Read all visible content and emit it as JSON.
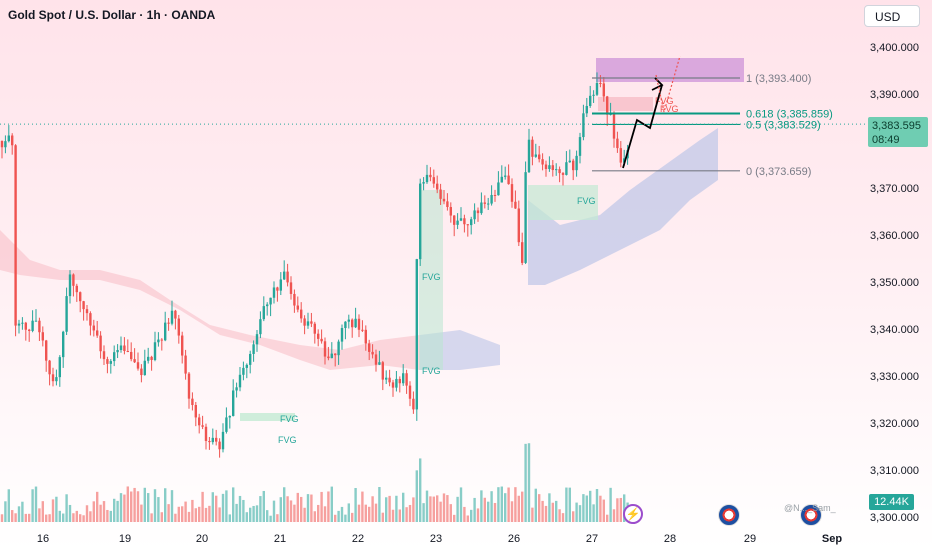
{
  "header": {
    "title": "Gold Spot / U.S. Dollar · 1h · OANDA",
    "currency_button": "USD"
  },
  "price_axis": {
    "ticks": [
      "3,400.000",
      "3,390.000",
      "3,380.000",
      "3,370.000",
      "3,360.000",
      "3,350.000",
      "3,340.000",
      "3,330.000",
      "3,320.000",
      "3,310.000",
      "3,300.000"
    ],
    "current_price": "3,383.595",
    "countdown": "08:49",
    "volume_label": "12.44K"
  },
  "time_axis": {
    "ticks": [
      "16",
      "19",
      "20",
      "21",
      "22",
      "23",
      "26",
      "27",
      "28",
      "29",
      "Sep"
    ]
  },
  "fib_labels": [
    "1 (3,393.400)",
    "0.618 (3,385.859)",
    "0.5 (3,383.529)",
    "0 (3,373.659)"
  ],
  "fvg_labels": [
    "FVG",
    "FVG",
    "FVG",
    "FVG",
    "FVG",
    "FVG",
    "FVG"
  ],
  "watermark": "@N..._Sam_",
  "colors": {
    "up": "#26a69a",
    "down": "#ef5350",
    "fib_green": "#089981",
    "fib_gray": "#787b86",
    "zone": "#ce93d8"
  },
  "chart_data": {
    "type": "candlestick",
    "symbol": "Gold Spot / U.S. Dollar",
    "timeframe": "1h",
    "ylim": [
      3300,
      3405
    ],
    "x_ticks": [
      "16",
      "19",
      "20",
      "21",
      "22",
      "23",
      "26",
      "27",
      "28",
      "29",
      "Sep"
    ],
    "price_path": [
      [
        15,
        3342
      ],
      [
        40,
        3340
      ],
      [
        55,
        3327
      ],
      [
        70,
        3352
      ],
      [
        85,
        3345
      ],
      [
        105,
        3333
      ],
      [
        120,
        3336
      ],
      [
        140,
        3330
      ],
      [
        160,
        3338
      ],
      [
        175,
        3344
      ],
      [
        190,
        3325
      ],
      [
        205,
        3317
      ],
      [
        220,
        3315
      ],
      [
        235,
        3327
      ],
      [
        255,
        3338
      ],
      [
        270,
        3348
      ],
      [
        285,
        3351
      ],
      [
        300,
        3342
      ],
      [
        315,
        3340
      ],
      [
        330,
        3332
      ],
      [
        345,
        3343
      ],
      [
        360,
        3340
      ],
      [
        375,
        3333
      ],
      [
        390,
        3328
      ],
      [
        405,
        3330
      ],
      [
        414,
        3322
      ],
      [
        418,
        3371
      ],
      [
        430,
        3372
      ],
      [
        445,
        3366
      ],
      [
        460,
        3362
      ],
      [
        475,
        3365
      ],
      [
        490,
        3367
      ],
      [
        505,
        3372
      ],
      [
        515,
        3365
      ],
      [
        522,
        3352
      ],
      [
        527,
        3380
      ],
      [
        535,
        3376
      ],
      [
        550,
        3374
      ],
      [
        565,
        3374
      ],
      [
        575,
        3375
      ],
      [
        583,
        3385
      ],
      [
        593,
        3390
      ],
      [
        600,
        3392
      ],
      [
        610,
        3385
      ],
      [
        622,
        3374
      ],
      [
        630,
        3380
      ]
    ],
    "fib_levels": [
      {
        "level": "1",
        "price": 3393.4
      },
      {
        "level": "0.618",
        "price": 3385.859
      },
      {
        "level": "0.5",
        "price": 3383.529
      },
      {
        "level": "0",
        "price": 3373.659
      }
    ],
    "current_price": 3383.595,
    "volume_last": "12.44K"
  }
}
